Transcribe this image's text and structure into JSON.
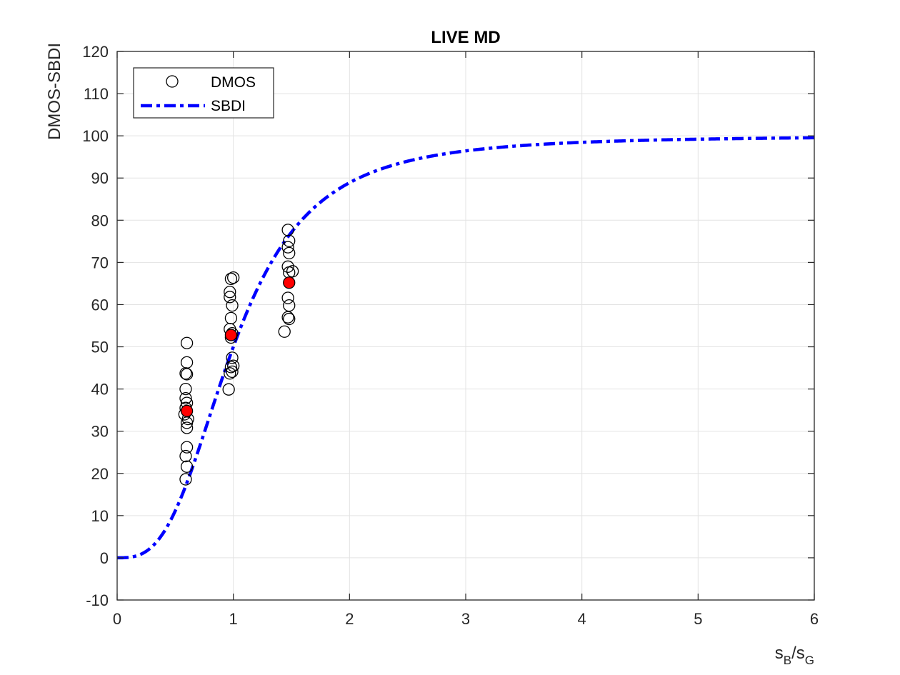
{
  "chart_data": {
    "type": "scatter",
    "title": "LIVE MD",
    "xlabel": {
      "base1": "s",
      "sub1": "B",
      "sep": "/",
      "base2": "s",
      "sub2": "G"
    },
    "ylabel": "DMOS-SBDI",
    "xlim": [
      0,
      6
    ],
    "ylim": [
      -10,
      120
    ],
    "xticks": [
      "0",
      "1",
      "2",
      "3",
      "4",
      "5",
      "6"
    ],
    "yticks": [
      "-10",
      "0",
      "10",
      "20",
      "30",
      "40",
      "50",
      "60",
      "70",
      "80",
      "90",
      "100",
      "110",
      "120"
    ],
    "grid": true,
    "legend_position": "top-left",
    "legend": [
      {
        "label": "DMOS",
        "marker": "open-circle"
      },
      {
        "label": "SBDI",
        "line": "dash-dot"
      }
    ],
    "colors": {
      "curve": "#0000ff",
      "means": "#ff0000",
      "circles": "#000000",
      "grid": "#e3e3e3",
      "axes": "#262626"
    },
    "series": [
      {
        "name": "DMOS",
        "points": [
          [
            0.59,
            18.6
          ],
          [
            0.6,
            21.6
          ],
          [
            0.59,
            24.1
          ],
          [
            0.6,
            26.2
          ],
          [
            0.6,
            30.8
          ],
          [
            0.6,
            32.0
          ],
          [
            0.61,
            32.9
          ],
          [
            0.58,
            34.0
          ],
          [
            0.59,
            35.5
          ],
          [
            0.6,
            36.7
          ],
          [
            0.59,
            37.8
          ],
          [
            0.59,
            40.0
          ],
          [
            0.6,
            43.5
          ],
          [
            0.59,
            43.7
          ],
          [
            0.6,
            46.3
          ],
          [
            0.6,
            50.9
          ],
          [
            0.96,
            39.9
          ],
          [
            0.97,
            43.7
          ],
          [
            0.99,
            44.1
          ],
          [
            0.98,
            45.2
          ],
          [
            1.0,
            45.5
          ],
          [
            0.99,
            47.4
          ],
          [
            0.98,
            52.2
          ],
          [
            0.99,
            53.2
          ],
          [
            0.97,
            54.2
          ],
          [
            0.98,
            56.8
          ],
          [
            0.99,
            59.8
          ],
          [
            0.97,
            61.8
          ],
          [
            0.97,
            63.0
          ],
          [
            0.98,
            66.1
          ],
          [
            1.0,
            66.4
          ],
          [
            1.44,
            53.6
          ],
          [
            1.48,
            56.6
          ],
          [
            1.47,
            57.0
          ],
          [
            1.48,
            59.8
          ],
          [
            1.47,
            61.6
          ],
          [
            1.48,
            67.6
          ],
          [
            1.51,
            67.9
          ],
          [
            1.47,
            69.0
          ],
          [
            1.48,
            72.2
          ],
          [
            1.47,
            73.6
          ],
          [
            1.48,
            75.1
          ],
          [
            1.47,
            77.7
          ]
        ]
      },
      {
        "name": "SBDI",
        "function": "100 * x^3 / (1 + x^3)",
        "x_range": [
          0,
          6
        ]
      },
      {
        "points": [
          [
            0.6,
            34.8
          ],
          [
            0.98,
            52.8
          ],
          [
            1.48,
            65.2
          ]
        ]
      }
    ]
  }
}
